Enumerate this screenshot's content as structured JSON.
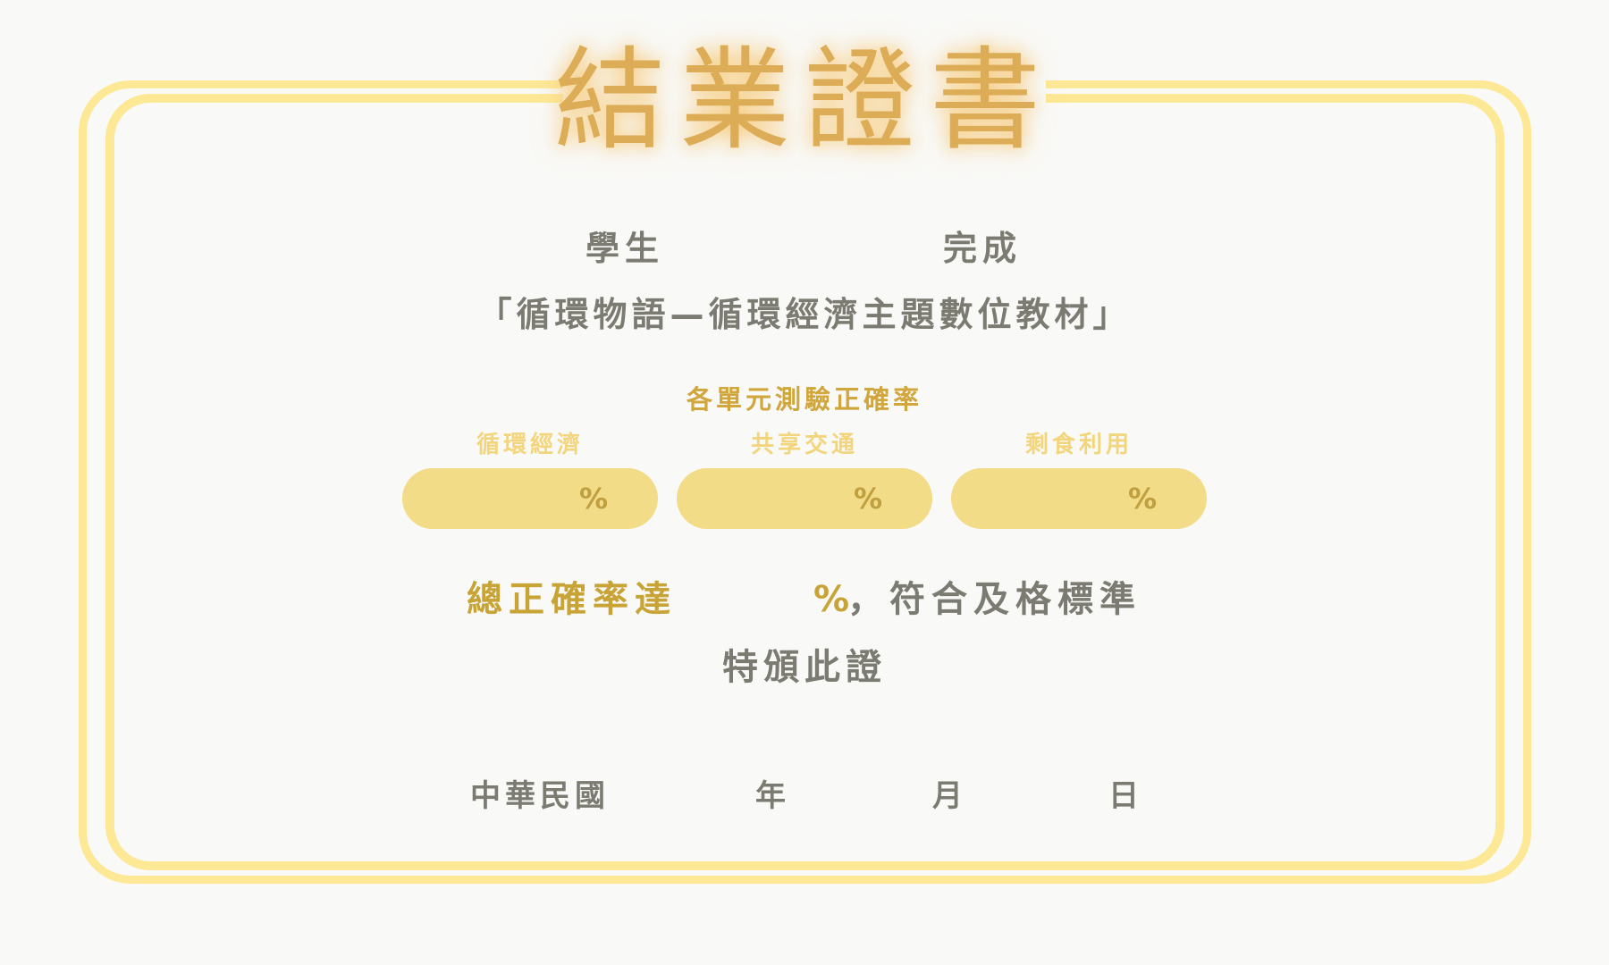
{
  "certificate": {
    "title": "結業證書",
    "student_label": "學生",
    "complete_label": "完成",
    "course_title": "「循環物語—循環經濟主題數位教材」",
    "quiz_section_title": "各單元測驗正確率",
    "units": [
      {
        "label": "循環經濟",
        "percent_sign": "%"
      },
      {
        "label": "共享交通",
        "percent_sign": "%"
      },
      {
        "label": "剩食利用",
        "percent_sign": "%"
      }
    ],
    "total_label": "總正確率達",
    "total_percent_sign": "%",
    "standard_text": "，符合及格標準",
    "grant_text": "特頒此證",
    "date": {
      "era_label": "中華民國",
      "year_label": "年",
      "month_label": "月",
      "day_label": "日"
    }
  },
  "colors": {
    "frame": "#fde896",
    "title": "#ddac57",
    "gold_text": "#c8a335",
    "gray_text": "#7b7b72",
    "pill": "#f2dc87",
    "background": "#f9f9f7"
  }
}
